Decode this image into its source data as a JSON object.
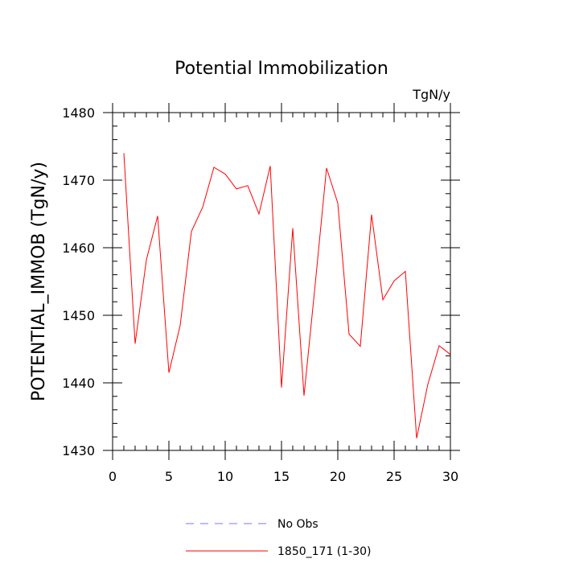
{
  "chart_data": {
    "type": "line",
    "title": "Potential Immobilization",
    "units_label": "TgN/y",
    "xlabel": "",
    "ylabel": "POTENTIAL_IMMOB  (TgN/y)",
    "xlim": [
      0,
      30
    ],
    "ylim": [
      1430,
      1480
    ],
    "x_major_ticks": [
      0,
      5,
      10,
      15,
      20,
      25,
      30
    ],
    "y_major_ticks": [
      1430,
      1440,
      1450,
      1460,
      1470,
      1480
    ],
    "x": [
      1,
      2,
      3,
      4,
      5,
      6,
      7,
      8,
      9,
      10,
      11,
      12,
      13,
      14,
      15,
      16,
      17,
      18,
      19,
      20,
      21,
      22,
      23,
      24,
      25,
      26,
      27,
      28,
      29,
      30
    ],
    "series": [
      {
        "name": "1850_171 (1-30)",
        "color": "#ff0000",
        "style": "solid",
        "values": [
          1474.0,
          1445.8,
          1458.2,
          1464.7,
          1441.5,
          1448.5,
          1462.4,
          1466.0,
          1471.9,
          1470.9,
          1468.7,
          1469.2,
          1465.0,
          1472.1,
          1439.3,
          1462.9,
          1438.1,
          1454.7,
          1471.8,
          1466.6,
          1447.2,
          1445.4,
          1464.9,
          1452.3,
          1455.1,
          1456.5,
          1431.8,
          1439.8,
          1445.5,
          1444.2
        ]
      }
    ],
    "legend": {
      "position": "bottom-center",
      "entries": [
        {
          "label": "No Obs",
          "color": "#7777ff",
          "style": "dashed"
        },
        {
          "label": "1850_171 (1-30)",
          "color": "#ff0000",
          "style": "solid"
        }
      ]
    }
  }
}
